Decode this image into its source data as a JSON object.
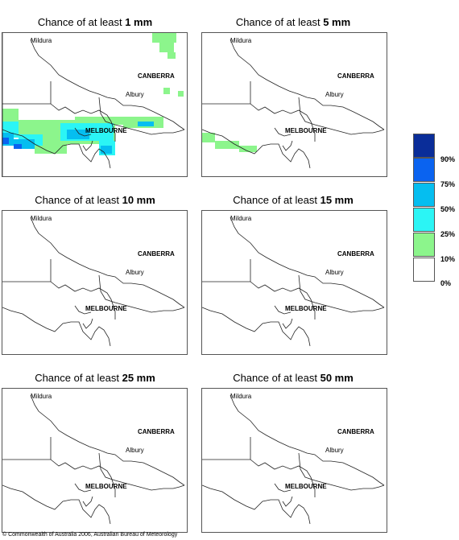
{
  "panels": [
    {
      "prefix": "Chance of at least ",
      "amount": "1 mm"
    },
    {
      "prefix": "Chance of at least ",
      "amount": "5 mm"
    },
    {
      "prefix": "Chance of at least ",
      "amount": "10 mm"
    },
    {
      "prefix": "Chance of at least ",
      "amount": "15 mm"
    },
    {
      "prefix": "Chance of at least ",
      "amount": "25 mm"
    },
    {
      "prefix": "Chance of at least ",
      "amount": "50 mm"
    }
  ],
  "cities": {
    "mildura": "Mildura",
    "canberra": "CANBERRA",
    "albury": "Albury",
    "melbourne": "MELBOURNE"
  },
  "legend": {
    "labels": [
      "90%",
      "75%",
      "50%",
      "25%",
      "10%",
      "0%"
    ],
    "colors": [
      "#0a2d99",
      "#0a63f0",
      "#05bef0",
      "#2bf5f5",
      "#8cf58c",
      "#ffffff"
    ]
  },
  "copyright": "© Commonwealth of Australia 2006, Australian Bureau of Meteorology",
  "colors": {
    "band_10_25": "#8cf58c",
    "band_25_50": "#2bf5f5",
    "band_50_75": "#05bef0",
    "band_75_90": "#0a63f0"
  }
}
